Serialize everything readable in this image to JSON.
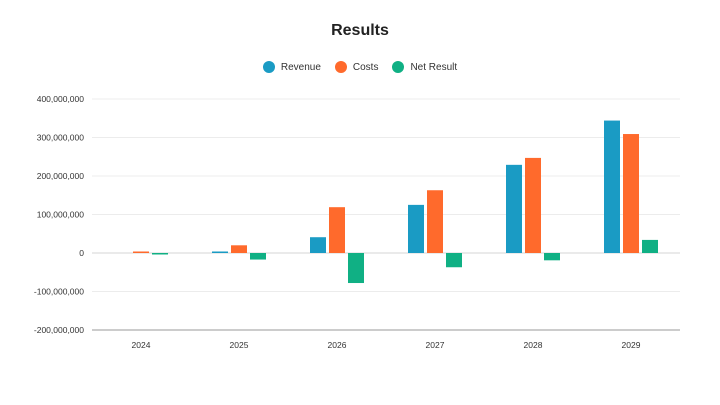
{
  "chart_data": {
    "type": "bar",
    "title": "Results",
    "categories": [
      "2024",
      "2025",
      "2026",
      "2027",
      "2028",
      "2029"
    ],
    "series": [
      {
        "name": "Revenue",
        "color": "#1a9bc4",
        "values": [
          0,
          3000000,
          41000000,
          125000000,
          229000000,
          344000000
        ]
      },
      {
        "name": "Costs",
        "color": "#ff6a2c",
        "values": [
          3000000,
          20000000,
          119000000,
          163000000,
          247000000,
          309000000
        ]
      },
      {
        "name": "Net Result",
        "color": "#10b084",
        "values": [
          -3000000,
          -17000000,
          -78000000,
          -37000000,
          -19000000,
          34000000
        ]
      }
    ],
    "y_ticks": [
      "400,000,000",
      "300,000,000",
      "200,000,000",
      "100,000,000",
      "0",
      "-100,000,000",
      "-200,000,000"
    ],
    "ylim": [
      -200000000,
      400000000
    ],
    "grid": true,
    "legend_position": "top-center"
  }
}
